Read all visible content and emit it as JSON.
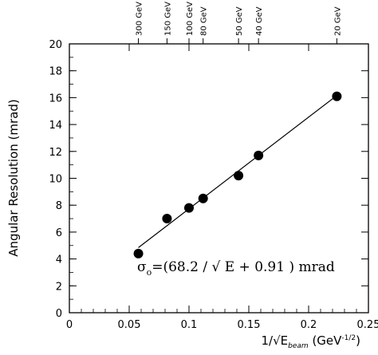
{
  "chart_data": {
    "type": "scatter",
    "xlim": [
      0,
      0.25
    ],
    "ylim": [
      0,
      20
    ],
    "x_ticks": [
      0,
      0.05,
      0.1,
      0.15,
      0.2,
      0.25
    ],
    "x_tick_labels": [
      "0",
      "0.05",
      "0.1",
      "0.15",
      "0.2",
      "0.25"
    ],
    "y_ticks": [
      0,
      2,
      4,
      6,
      8,
      10,
      12,
      14,
      16,
      18,
      20
    ],
    "y_tick_labels": [
      "0",
      "2",
      "4",
      "6",
      "8",
      "10",
      "12",
      "14",
      "16",
      "18",
      "20"
    ],
    "ylabel": "Angular Resolution (mrad)",
    "xlabel": "1/√E_beam (GeV^-1/2)",
    "top_axis": [
      {
        "label": "300 GeV",
        "x": 0.0577
      },
      {
        "label": "150 GeV",
        "x": 0.0816
      },
      {
        "label": "100 GeV",
        "x": 0.1
      },
      {
        "label": "80 GeV",
        "x": 0.1118
      },
      {
        "label": "50 GeV",
        "x": 0.1414
      },
      {
        "label": "40 GeV",
        "x": 0.1581
      },
      {
        "label": "20 GeV",
        "x": 0.2236
      }
    ],
    "points": [
      {
        "x": 0.0577,
        "y": 4.4
      },
      {
        "x": 0.0816,
        "y": 7.0
      },
      {
        "x": 0.1,
        "y": 7.8
      },
      {
        "x": 0.1118,
        "y": 8.5
      },
      {
        "x": 0.1414,
        "y": 10.2
      },
      {
        "x": 0.1581,
        "y": 11.7
      },
      {
        "x": 0.2236,
        "y": 16.1
      }
    ],
    "fit": {
      "slope": 68.2,
      "intercept": 0.91,
      "x_range": [
        0.0577,
        0.2236
      ]
    },
    "annotation": {
      "sigma": "σ",
      "subscript": "o",
      "text": "=(68.2 / √ E + 0.91 ) mrad"
    },
    "grid": false,
    "legend": "none"
  }
}
